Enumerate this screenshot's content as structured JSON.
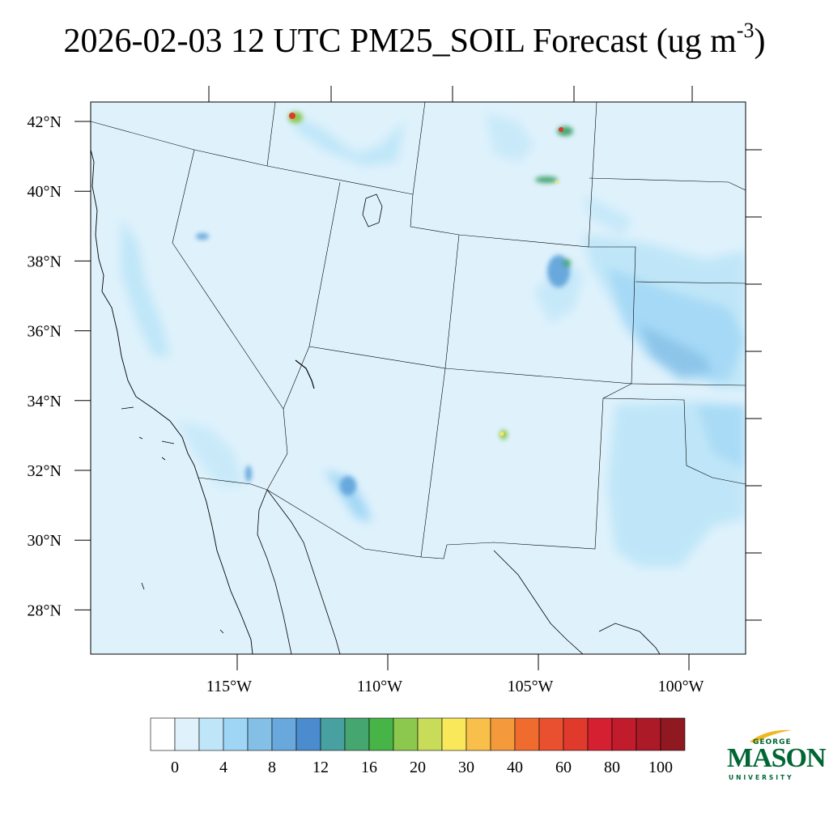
{
  "title": {
    "main": "2026-02-03 12 UTC PM25_SOIL Forecast (ug m",
    "superscript": "-3",
    "suffix": ")"
  },
  "map": {
    "extent": {
      "lon_min": -119.3,
      "lon_max": -97.8,
      "lat_min": 26.8,
      "lat_max": 42.6
    },
    "lat_ticks": [
      {
        "value": 42,
        "label": "42°N"
      },
      {
        "value": 40,
        "label": "40°N"
      },
      {
        "value": 38,
        "label": "38°N"
      },
      {
        "value": 36,
        "label": "36°N"
      },
      {
        "value": 34,
        "label": "34°N"
      },
      {
        "value": 32,
        "label": "32°N"
      },
      {
        "value": 30,
        "label": "30°N"
      },
      {
        "value": 28,
        "label": "28°N"
      }
    ],
    "lon_ticks": [
      {
        "value": -115,
        "label": "115°W"
      },
      {
        "value": -110,
        "label": "110°W"
      },
      {
        "value": -105,
        "label": "105°W"
      },
      {
        "value": -100,
        "label": "100°W"
      }
    ],
    "background_color": "#dff2fc",
    "outline_color": "#000000"
  },
  "colorbar": {
    "colors": [
      "#ffffff",
      "#dff2fc",
      "#bfe6f8",
      "#a0d6f5",
      "#84bfe6",
      "#68a8dc",
      "#4a8cce",
      "#48a0a0",
      "#46a670",
      "#46b446",
      "#8cc84e",
      "#c8dc5a",
      "#f8e85a",
      "#f8c04a",
      "#f49a3c",
      "#f06c2e",
      "#e85030",
      "#e03a2c",
      "#d42030",
      "#c01c2c",
      "#ac1a28",
      "#901820"
    ],
    "labels": [
      "0",
      "4",
      "8",
      "12",
      "16",
      "20",
      "30",
      "40",
      "60",
      "80",
      "100"
    ]
  },
  "logo": {
    "line1": "GEORGE",
    "line2": "MASON",
    "line3": "UNIVERSITY",
    "color": "#006633",
    "accent_color": "#f0b820"
  }
}
